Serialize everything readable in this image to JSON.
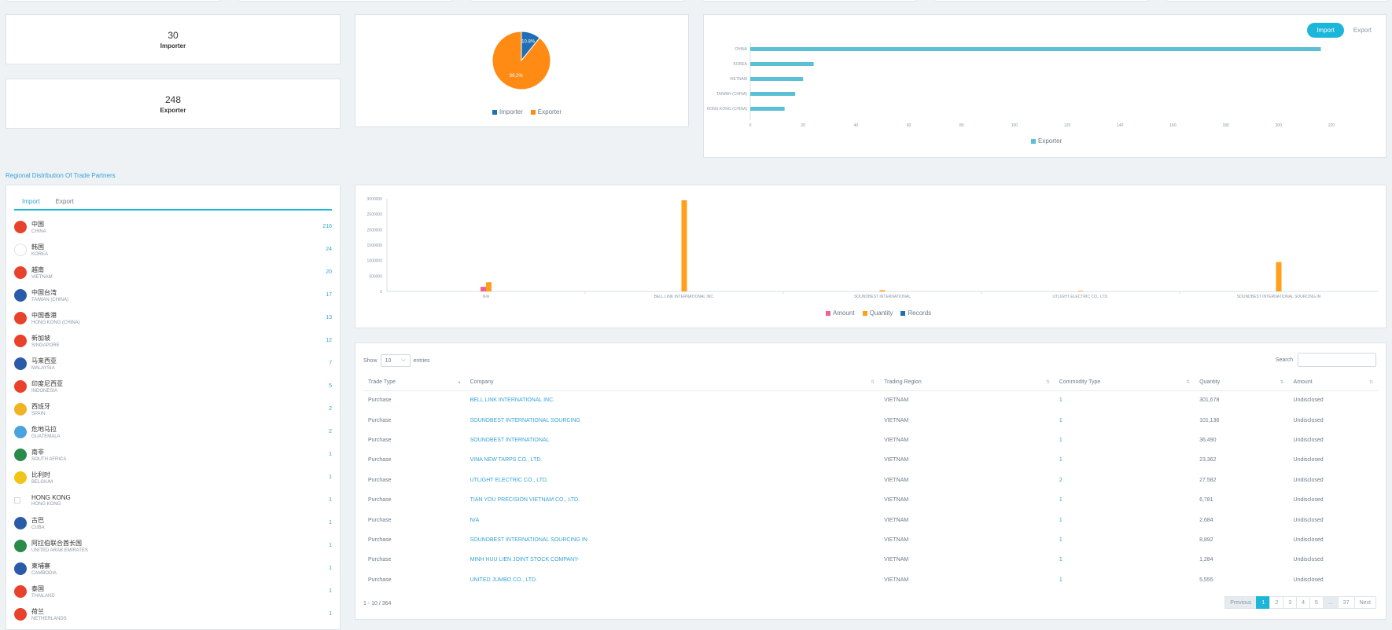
{
  "kpis": [
    {
      "value": "30",
      "label": "Importer"
    },
    {
      "value": "248",
      "label": "Exporter"
    }
  ],
  "pie": {
    "chart_data": {
      "type": "pie",
      "slices": [
        {
          "name": "Importer",
          "value": 10.8,
          "label": "10.8%",
          "color": "#1f6fb4"
        },
        {
          "name": "Exporter",
          "value": 89.2,
          "label": "89.2%",
          "color": "#ff8a14"
        }
      ]
    }
  },
  "hbar": {
    "toggle": {
      "active": "Import",
      "inactive": "Export"
    },
    "chart_data": {
      "type": "bar",
      "orientation": "horizontal",
      "categories": [
        "CHINA",
        "KOREA",
        "VIETNAM",
        "TAIWAN (CHINA)",
        "HONG KONG (CHINA)"
      ],
      "series": [
        {
          "name": "Exporter",
          "values": [
            216,
            24,
            20,
            17,
            13
          ],
          "color": "#5bc0d6"
        }
      ],
      "xticks": [
        "0",
        "20",
        "40",
        "60",
        "80",
        "100",
        "120",
        "140",
        "160",
        "180",
        "200",
        "220"
      ],
      "xlim": [
        0,
        220
      ]
    }
  },
  "section_title": "Regional Distribution Of Trade Partners",
  "region_tabs": {
    "active": "Import",
    "inactive": "Export"
  },
  "countries": [
    {
      "zh": "中国",
      "en": "CHINA",
      "count": "216",
      "flag": "#e8412c"
    },
    {
      "zh": "韩国",
      "en": "KOREA",
      "count": "24",
      "flag": "#ffffff"
    },
    {
      "zh": "越南",
      "en": "VIETNAM",
      "count": "20",
      "flag": "#e8412c"
    },
    {
      "zh": "中国台湾",
      "en": "TAIWAN (CHINA)",
      "count": "17",
      "flag": "#2b5aa8"
    },
    {
      "zh": "中国香港",
      "en": "HONG KONG (CHINA)",
      "count": "13",
      "flag": "#e8412c"
    },
    {
      "zh": "新加坡",
      "en": "SINGAPORE",
      "count": "12",
      "flag": "#e8412c"
    },
    {
      "zh": "马来西亚",
      "en": "MALAYSIA",
      "count": "7",
      "flag": "#2b5aa8"
    },
    {
      "zh": "印度尼西亚",
      "en": "INDONESIA",
      "count": "5",
      "flag": "#e8412c"
    },
    {
      "zh": "西班牙",
      "en": "SPAIN",
      "count": "2",
      "flag": "#f0b323"
    },
    {
      "zh": "危地马拉",
      "en": "GUATEMALA",
      "count": "2",
      "flag": "#4aa3df"
    },
    {
      "zh": "南非",
      "en": "SOUTH AFRICA",
      "count": "1",
      "flag": "#2a8a4a"
    },
    {
      "zh": "比利时",
      "en": "BELGIUM",
      "count": "1",
      "flag": "#f0c419"
    },
    {
      "zh": "HONG KONG",
      "en": "HONG KONG",
      "count": "1",
      "flag": "broken"
    },
    {
      "zh": "古巴",
      "en": "CUBA",
      "count": "1",
      "flag": "#2b5aa8"
    },
    {
      "zh": "阿拉伯联合酋长国",
      "en": "UNITED ARAB EMIRATES",
      "count": "1",
      "flag": "#2a8a4a"
    },
    {
      "zh": "柬埔寨",
      "en": "CAMBODIA",
      "count": "1",
      "flag": "#2b5aa8"
    },
    {
      "zh": "泰国",
      "en": "THAILAND",
      "count": "1",
      "flag": "#e8412c"
    },
    {
      "zh": "荷兰",
      "en": "NETHERLANDS",
      "count": "1",
      "flag": "#e8412c"
    }
  ],
  "vbar": {
    "chart_data": {
      "type": "bar",
      "categories": [
        "N/A",
        "BELL LINK INTERNATIONAL INC.",
        "SOUNDBEST INTERNATIONAL",
        "UTLIGHT ELECTRIC CO., LTD.",
        "SOUNDBEST INTERNATIONAL SOURCING IN"
      ],
      "series": [
        {
          "name": "Amount",
          "values": [
            150000,
            0,
            0,
            0,
            0
          ],
          "color": "#f06292"
        },
        {
          "name": "Quantity",
          "values": [
            300000,
            2950000,
            40000,
            20000,
            950000
          ],
          "color": "#ff9f1a"
        },
        {
          "name": "Records",
          "values": [
            0,
            0,
            0,
            0,
            0
          ],
          "color": "#1f6fb4"
        }
      ],
      "yticks": [
        "0",
        "500000",
        "1000000",
        "1500000",
        "2000000",
        "2500000",
        "3000000"
      ],
      "ylim": [
        0,
        3000000
      ]
    }
  },
  "table": {
    "show_label": "Show",
    "entries_label": "entries",
    "page_size": "10",
    "search_label": "Search",
    "columns": [
      "Trade Type",
      "Company",
      "Trading Region",
      "Commodity Type",
      "Quantity",
      "Amount"
    ],
    "rows": [
      [
        "Purchase",
        "BELL LINK INTERNATIONAL INC.",
        "VIETNAM",
        "1",
        "301,678",
        "Undisclosed"
      ],
      [
        "Purchase",
        "SOUNDBEST INTERNATIONAL SOURCING",
        "VIETNAM",
        "1",
        "101,136",
        "Undisclosed"
      ],
      [
        "Purchase",
        "SOUNDBEST INTERNATIONAL",
        "VIETNAM",
        "1",
        "36,490",
        "Undisclosed"
      ],
      [
        "Purchase",
        "VINA NEW TARPS CO., LTD.",
        "VIETNAM",
        "1",
        "23,362",
        "Undisclosed"
      ],
      [
        "Purchase",
        "UTLIGHT ELECTRIC CO., LTD.",
        "VIETNAM",
        "2",
        "27,582",
        "Undisclosed"
      ],
      [
        "Purchase",
        "TIAN YOU PRECISION VIETNAM CO., LTD.",
        "VIETNAM",
        "1",
        "6,781",
        "Undisclosed"
      ],
      [
        "Purchase",
        "N/A",
        "VIETNAM",
        "1",
        "2,684",
        "Undisclosed"
      ],
      [
        "Purchase",
        "SOUNDBEST INTERNATIONAL SOURCING IN",
        "VIETNAM",
        "1",
        "8,892",
        "Undisclosed"
      ],
      [
        "Purchase",
        "MINH HUU LIEN JOINT STOCK COMPANY-",
        "VIETNAM",
        "1",
        "1,284",
        "Undisclosed"
      ],
      [
        "Purchase",
        "UNITED JUMBO CO., LTD.",
        "VIETNAM",
        "1",
        "5,555",
        "Undisclosed"
      ]
    ],
    "range": "1 - 10 / 364",
    "pager": [
      "Previous",
      "1",
      "2",
      "3",
      "4",
      "5",
      "...",
      "37",
      "Next"
    ]
  }
}
